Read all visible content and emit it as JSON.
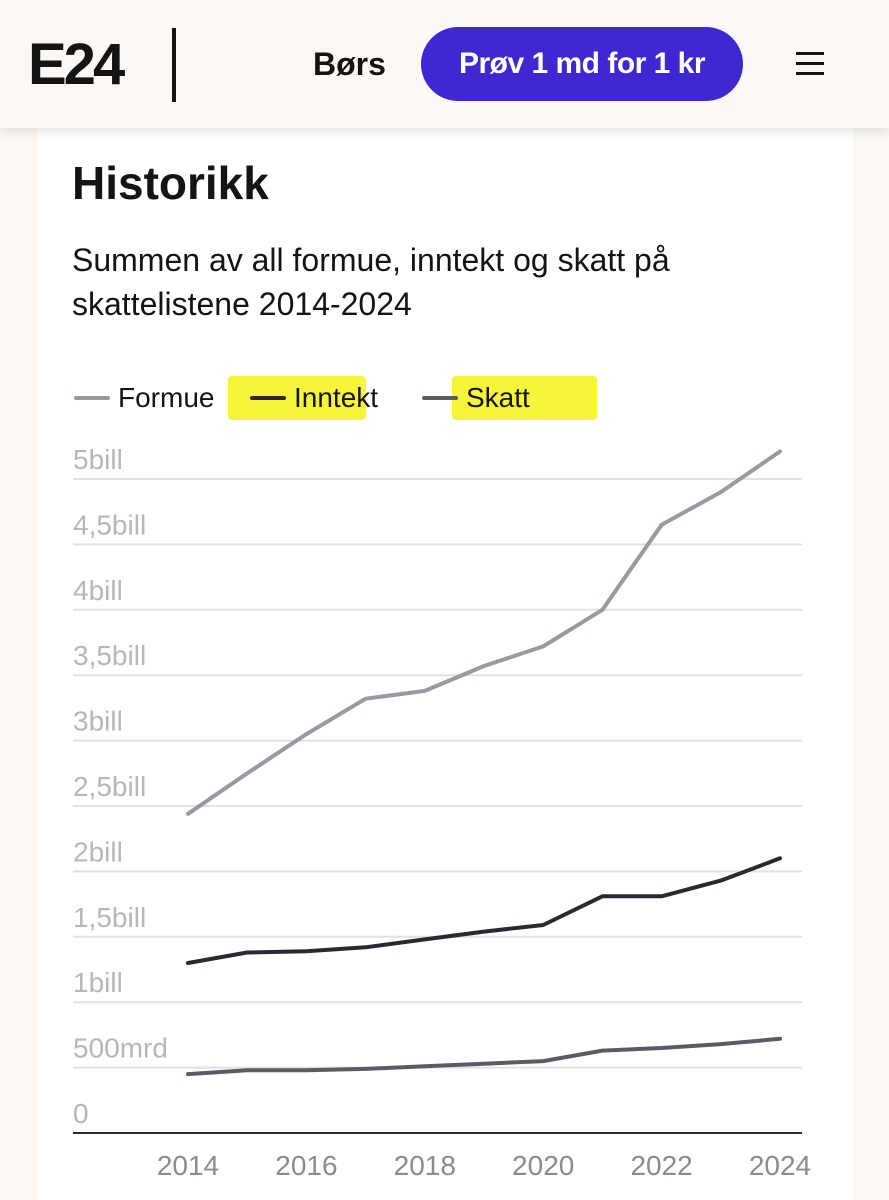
{
  "header": {
    "logo": "E24",
    "nav_label": "Børs",
    "cta_label": "Prøv 1 md for 1 kr",
    "menu_icon": "hamburger-menu-icon"
  },
  "colors": {
    "brand": "#3d28d2",
    "highlight": "#f6f53a",
    "formue": "#9a98a2",
    "inntekt": "#2a2830",
    "skatt": "#5c5a64"
  },
  "section": {
    "title": "Historikk",
    "subtitle": "Summen av all formue, inntekt og skatt på skattelistene 2014-2024"
  },
  "legend": [
    {
      "label": "Formue",
      "color": "#9a98a2"
    },
    {
      "label": "Inntekt",
      "color": "#2a2830"
    },
    {
      "label": "Skatt",
      "color": "#5c5a64"
    }
  ],
  "chart_data": {
    "type": "line",
    "title": "Historikk",
    "subtitle": "Summen av all formue, inntekt og skatt på skattelistene 2014-2024",
    "x": [
      2014,
      2015,
      2016,
      2017,
      2018,
      2019,
      2020,
      2021,
      2022,
      2023,
      2024
    ],
    "x_ticks": [
      "2014",
      "2016",
      "2018",
      "2020",
      "2022",
      "2024"
    ],
    "y_ticks": [
      "0",
      "500mrd",
      "1bill",
      "1,5bill",
      "2bill",
      "2,5bill",
      "3bill",
      "3,5bill",
      "4bill",
      "4,5bill",
      "5bill"
    ],
    "ylim": [
      0,
      5000
    ],
    "y_unit": "mrd",
    "grid": true,
    "legend_position": "top",
    "series": [
      {
        "name": "Formue",
        "color": "#9a98a2",
        "values": [
          2440,
          2750,
          3050,
          3320,
          3380,
          3570,
          3720,
          4000,
          4650,
          4900,
          5210
        ]
      },
      {
        "name": "Inntekt",
        "color": "#2a2830",
        "values": [
          1300,
          1380,
          1390,
          1420,
          1480,
          1540,
          1590,
          1810,
          1810,
          1930,
          2100
        ]
      },
      {
        "name": "Skatt",
        "color": "#5c5a64",
        "values": [
          450,
          480,
          480,
          490,
          510,
          530,
          550,
          630,
          650,
          680,
          720
        ]
      }
    ]
  }
}
